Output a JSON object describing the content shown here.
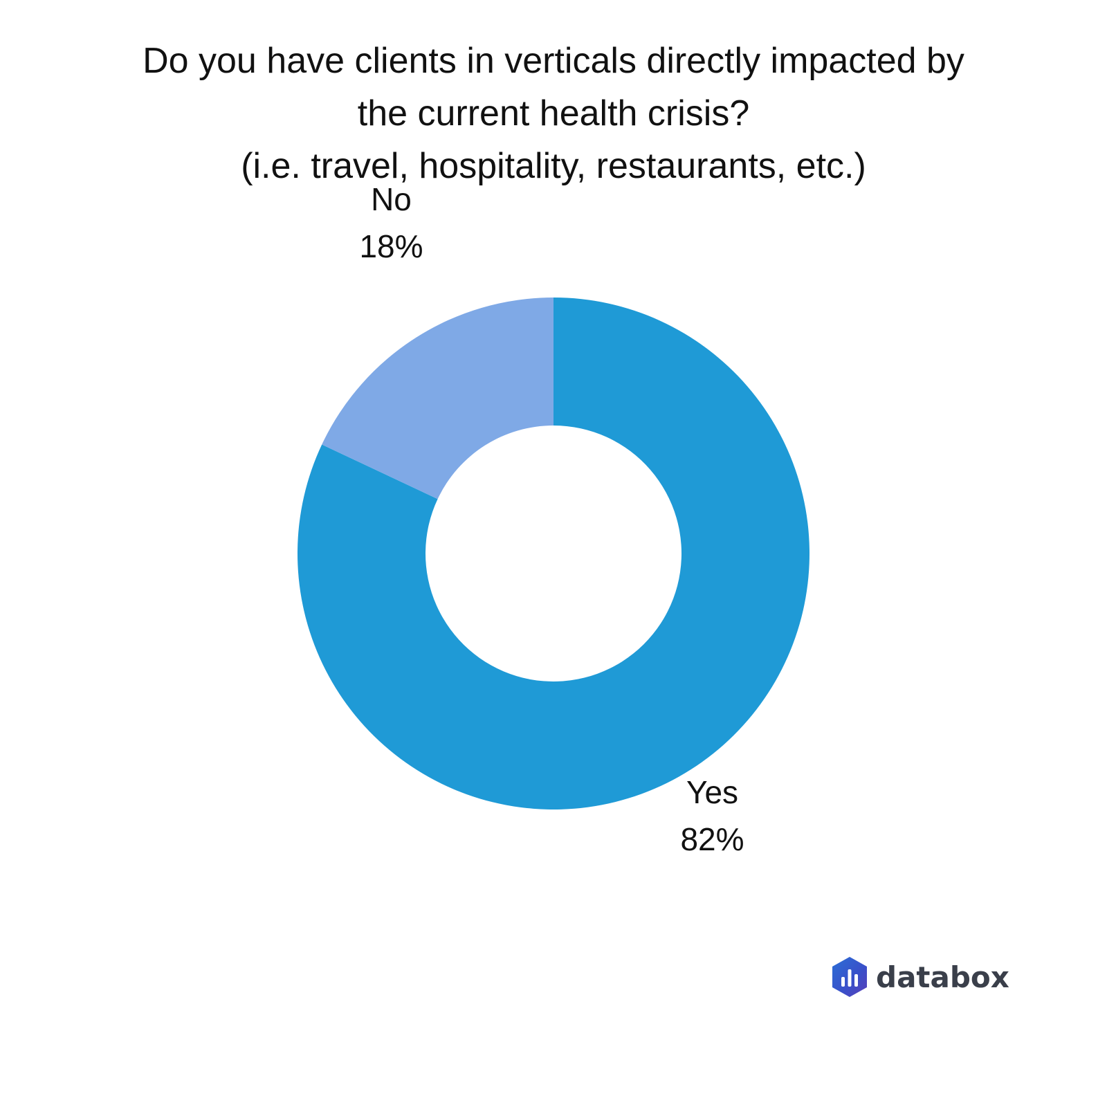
{
  "title": {
    "line1": "Do you have clients in verticals directly impacted by",
    "line2": "the current health crisis?",
    "line3": "(i.e. travel, hospitality, restaurants, etc.)"
  },
  "brand": {
    "name": "databox",
    "icon": "databox-hexagon-bars-icon"
  },
  "chart_data": {
    "type": "pie",
    "donut": true,
    "title": "Do you have clients in verticals directly impacted by the current health crisis? (i.e. travel, hospitality, restaurants, etc.)",
    "slices": [
      {
        "label": "Yes",
        "value": 82,
        "display": "82%",
        "color": "#1f9ad6"
      },
      {
        "label": "No",
        "value": 18,
        "display": "18%",
        "color": "#7fa9e6"
      }
    ],
    "legend": "none"
  }
}
